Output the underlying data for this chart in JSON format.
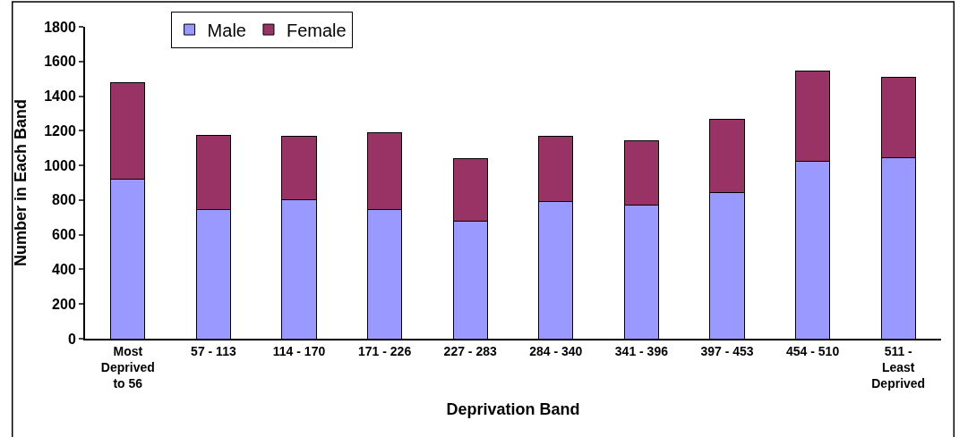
{
  "chart_data": {
    "type": "bar",
    "stacked": true,
    "xlabel": "Deprivation Band",
    "ylabel": "Number in Each Band",
    "categories": [
      "Most\nDeprived\nto 56",
      "57 - 113",
      "114 - 170",
      "171 - 226",
      "227 - 283",
      "284 - 340",
      "341 - 396",
      "397 - 453",
      "454 - 510",
      "511 -\nLeast\nDeprived"
    ],
    "series": [
      {
        "name": "Male",
        "color": "#9999ff",
        "values": [
          920,
          745,
          800,
          745,
          680,
          790,
          770,
          845,
          1025,
          1045
        ]
      },
      {
        "name": "Female",
        "color": "#993366",
        "values": [
          560,
          430,
          370,
          445,
          360,
          380,
          375,
          420,
          520,
          465
        ]
      }
    ],
    "ylim": [
      0,
      1800
    ],
    "yticks": [
      0,
      200,
      400,
      600,
      800,
      1000,
      1200,
      1400,
      1600,
      1800
    ],
    "legend": "top left"
  }
}
